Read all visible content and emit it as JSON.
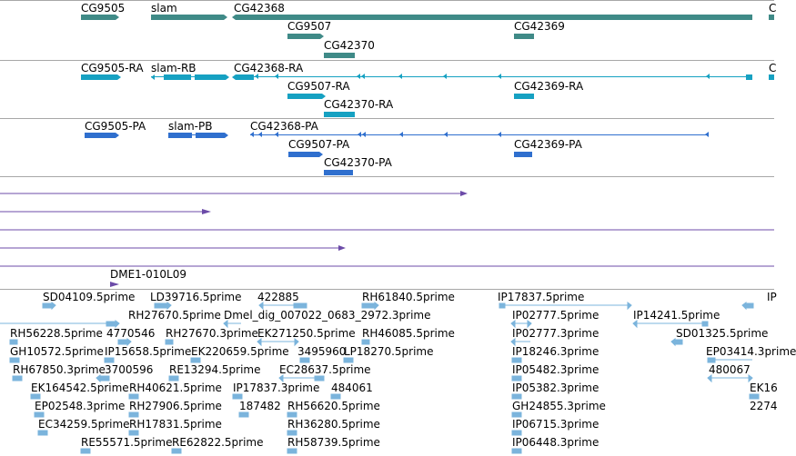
{
  "colors": {
    "gene": "#3f8a87",
    "transcript": "#16a1c2",
    "protein": "#2f6fce",
    "purple": "#6c4ba8",
    "est": "#7bb4dc",
    "divider": "#a7a7a7"
  },
  "genes": [
    "CG9505",
    "slam",
    "CG42368",
    "CG9507",
    "CG42370",
    "CG42369"
  ],
  "transcripts": [
    "CG9505-RA",
    "slam-RB",
    "CG42368-RA",
    "CG9507-RA",
    "CG42370-RA",
    "CG42369-RA"
  ],
  "proteins": [
    "CG9505-PA",
    "slam-PB",
    "CG42368-PA",
    "CG9507-PA",
    "CG42370-PA",
    "CG42369-PA"
  ],
  "clone_label": "DME1-010L09",
  "ests": [
    "SD04109.5prime",
    "LD39716.5prime",
    "422885",
    "RH61840.5prime",
    "IP17837.5prime",
    "RH27670.5prime",
    "Dmel_dig_007022_0683_2972.3prime",
    "IP02777.5prime",
    "IP14241.5prime",
    "RH56228.5prime",
    "4770546",
    "RH27670.3prime",
    "EK271250.5prime",
    "RH46085.5prime",
    "IP02777.3prime",
    "SD01325.5prime",
    "GH10572.5prime",
    "IP15658.5prime",
    "EK220659.5prime",
    "3495960",
    "LP18270.5prime",
    "IP18246.3prime",
    "EP03414.3prime",
    "RH67850.3prime",
    "3700596",
    "RE13294.5prime",
    "EC28637.5prime",
    "IP05482.3prime",
    "480067",
    "EK164542.5prime",
    "RH40621.5prime",
    "IP17837.3prime",
    "484061",
    "IP05382.3prime",
    "EP02548.3prime",
    "RH27906.5prime",
    "187482",
    "RH56620.5prime",
    "GH24855.3prime",
    "EC34259.5prime",
    "RH17831.5prime",
    "RH36280.5prime",
    "IP06715.3prime",
    "RE55571.5prime",
    "RE62822.5prime",
    "RH58739.5prime",
    "IP06448.3prime"
  ]
}
